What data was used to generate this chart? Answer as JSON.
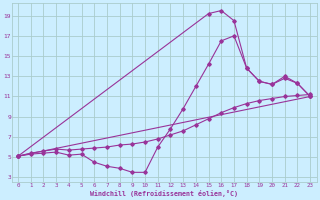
{
  "background_color": "#cceeff",
  "grid_color": "#aacccc",
  "line_color": "#993399",
  "marker_color": "#993399",
  "xlabel": "Windchill (Refroidissement éolien,°C)",
  "xlabel_color": "#993399",
  "tick_color": "#993399",
  "xlim": [
    -0.5,
    23.5
  ],
  "ylim": [
    2.5,
    20.2
  ],
  "xticks": [
    0,
    1,
    2,
    3,
    4,
    5,
    6,
    7,
    8,
    9,
    10,
    11,
    12,
    13,
    14,
    15,
    16,
    17,
    18,
    19,
    20,
    21,
    22,
    23
  ],
  "yticks": [
    3,
    5,
    7,
    9,
    11,
    13,
    15,
    17,
    19
  ],
  "curve1_x": [
    0,
    1,
    2,
    3,
    4,
    5,
    6,
    7,
    8,
    9,
    10,
    11,
    12,
    13,
    14,
    15,
    16,
    17,
    18,
    19,
    20,
    21,
    22,
    23
  ],
  "curve1_y": [
    5.1,
    5.3,
    5.4,
    5.5,
    5.2,
    5.3,
    4.5,
    4.1,
    3.9,
    3.5,
    3.5,
    6.0,
    7.8,
    9.8,
    12.0,
    14.2,
    16.5,
    17.0,
    13.8,
    12.5,
    12.2,
    12.8,
    12.3,
    11.0
  ],
  "curve2_x": [
    0,
    15,
    16,
    17,
    18,
    19,
    20,
    21,
    22,
    23
  ],
  "curve2_y": [
    5.1,
    19.2,
    19.5,
    18.5,
    13.8,
    12.5,
    12.2,
    13.0,
    12.3,
    11.0
  ],
  "curve3_x": [
    0,
    23
  ],
  "curve3_y": [
    5.1,
    11.0
  ],
  "curve4_x": [
    0,
    1,
    2,
    3,
    4,
    5,
    6,
    7,
    8,
    9,
    10,
    11,
    12,
    13,
    14,
    15,
    16,
    17,
    18,
    19,
    20,
    21,
    22,
    23
  ],
  "curve4_y": [
    5.1,
    5.4,
    5.6,
    5.8,
    5.7,
    5.8,
    5.9,
    6.0,
    6.2,
    6.3,
    6.5,
    6.8,
    7.2,
    7.6,
    8.2,
    8.8,
    9.4,
    9.9,
    10.3,
    10.6,
    10.8,
    11.0,
    11.1,
    11.2
  ]
}
